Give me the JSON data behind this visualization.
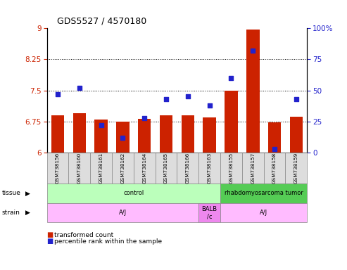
{
  "title": "GDS5527 / 4570180",
  "samples": [
    "GSM738156",
    "GSM738160",
    "GSM738161",
    "GSM738162",
    "GSM738164",
    "GSM738165",
    "GSM738166",
    "GSM738163",
    "GSM738155",
    "GSM738157",
    "GSM738158",
    "GSM738159"
  ],
  "red_values": [
    6.9,
    6.95,
    6.8,
    6.75,
    6.82,
    6.9,
    6.9,
    6.85,
    7.5,
    8.97,
    6.73,
    6.87
  ],
  "blue_values": [
    47,
    52,
    22,
    12,
    28,
    43,
    45,
    38,
    60,
    82,
    3,
    43
  ],
  "ylim_left": [
    6.0,
    9.0
  ],
  "ylim_right": [
    0,
    100
  ],
  "yticks_left": [
    6.0,
    6.75,
    7.5,
    8.25,
    9.0
  ],
  "yticks_right": [
    0,
    25,
    50,
    75,
    100
  ],
  "hlines": [
    6.75,
    7.5,
    8.25
  ],
  "tissue_groups": [
    {
      "label": "control",
      "start": 0,
      "end": 8,
      "color": "#bbffbb"
    },
    {
      "label": "rhabdomyosarcoma tumor",
      "start": 8,
      "end": 12,
      "color": "#55cc55"
    }
  ],
  "strain_groups": [
    {
      "label": "A/J",
      "start": 0,
      "end": 7,
      "color": "#ffbbff"
    },
    {
      "label": "BALB\n/c",
      "start": 7,
      "end": 8,
      "color": "#ee88ee"
    },
    {
      "label": "A/J",
      "start": 8,
      "end": 12,
      "color": "#ffbbff"
    }
  ],
  "bar_color": "#cc2200",
  "dot_color": "#2222cc",
  "background_color": "#ffffff",
  "tick_color_left": "#cc2200",
  "tick_color_right": "#2222cc"
}
